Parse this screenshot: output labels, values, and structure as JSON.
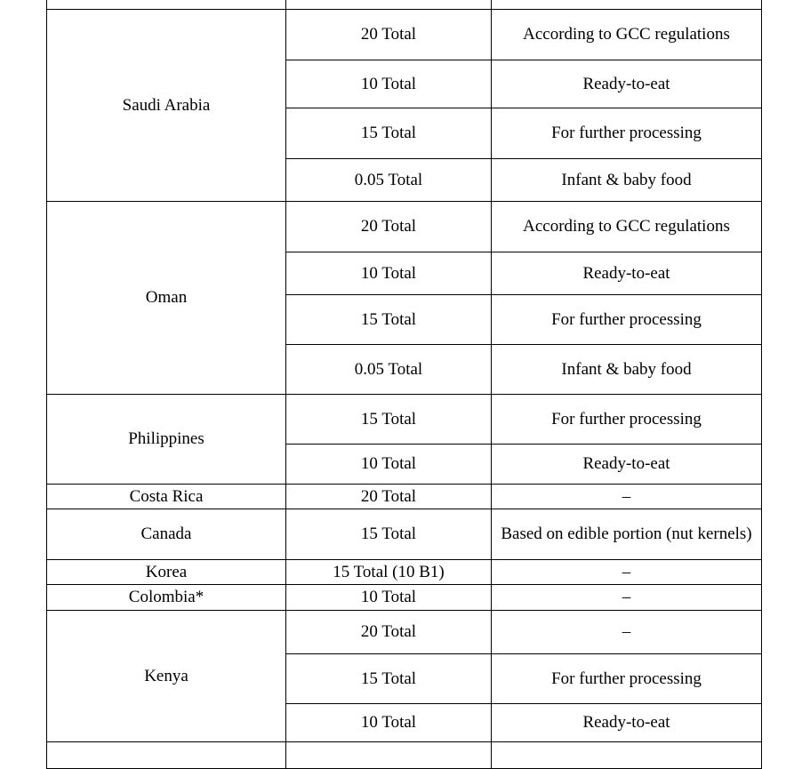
{
  "table": {
    "groups": [
      {
        "country": "Saudi Arabia",
        "rows": [
          {
            "limit": "20 Total",
            "note": "According to GCC regulations"
          },
          {
            "limit": "10 Total",
            "note": "Ready-to-eat"
          },
          {
            "limit": "15 Total",
            "note": "For further processing"
          },
          {
            "limit": "0.05 Total",
            "note": "Infant & baby food"
          }
        ]
      },
      {
        "country": "Oman",
        "rows": [
          {
            "limit": "20 Total",
            "note": "According to GCC regulations"
          },
          {
            "limit": "10 Total",
            "note": "Ready-to-eat"
          },
          {
            "limit": "15 Total",
            "note": "For further processing"
          },
          {
            "limit": "0.05 Total",
            "note": "Infant & baby food"
          }
        ]
      },
      {
        "country": "Philippines",
        "rows": [
          {
            "limit": "15 Total",
            "note": "For further processing"
          },
          {
            "limit": "10 Total",
            "note": "Ready-to-eat"
          }
        ]
      },
      {
        "country": "Costa Rica",
        "rows": [
          {
            "limit": "20 Total",
            "note": "–"
          }
        ]
      },
      {
        "country": "Canada",
        "rows": [
          {
            "limit": "15 Total",
            "note": "Based on edible portion (nut kernels)"
          }
        ]
      },
      {
        "country": "Korea",
        "rows": [
          {
            "limit": "15 Total (10 B1)",
            "note": "–"
          }
        ]
      },
      {
        "country": "Colombia*",
        "rows": [
          {
            "limit": "10 Total",
            "note": "–"
          }
        ]
      },
      {
        "country": "Kenya",
        "rows": [
          {
            "limit": "20 Total",
            "note": "–"
          },
          {
            "limit": "15 Total",
            "note": "For further processing"
          },
          {
            "limit": "10 Total",
            "note": "Ready-to-eat"
          }
        ]
      }
    ]
  }
}
